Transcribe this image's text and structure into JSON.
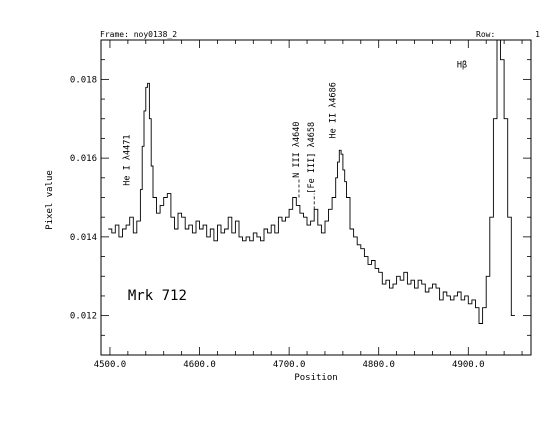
{
  "header": {
    "frame": "Frame: noy0138_2",
    "row_label": "Row:",
    "row_value": "1"
  },
  "chart_data": {
    "type": "line",
    "title": "",
    "xlabel": "Position",
    "ylabel": "Pixel value",
    "xlim": [
      4490,
      4970
    ],
    "ylim": [
      0.011,
      0.019
    ],
    "x_ticks": [
      "4500.0",
      "4600.0",
      "4700.0",
      "4800.0",
      "4900.0"
    ],
    "y_ticks": [
      "0.012",
      "0.014",
      "0.016",
      "0.018"
    ],
    "grid": false,
    "step": true,
    "series": [
      {
        "x": [
          4498,
          4502,
          4506,
          4510,
          4514,
          4518,
          4522,
          4526,
          4530,
          4534,
          4536,
          4538,
          4540,
          4542,
          4544,
          4546,
          4548,
          4552,
          4556,
          4560,
          4564,
          4568,
          4572,
          4576,
          4580,
          4584,
          4588,
          4592,
          4596,
          4600,
          4604,
          4608,
          4612,
          4616,
          4620,
          4624,
          4628,
          4632,
          4636,
          4640,
          4644,
          4648,
          4652,
          4656,
          4660,
          4664,
          4668,
          4672,
          4676,
          4680,
          4684,
          4688,
          4692,
          4696,
          4700,
          4704,
          4708,
          4712,
          4716,
          4720,
          4724,
          4728,
          4732,
          4736,
          4740,
          4744,
          4748,
          4752,
          4754,
          4756,
          4758,
          4760,
          4762,
          4764,
          4768,
          4772,
          4776,
          4780,
          4784,
          4788,
          4792,
          4796,
          4800,
          4804,
          4808,
          4812,
          4816,
          4820,
          4824,
          4828,
          4832,
          4836,
          4840,
          4844,
          4848,
          4852,
          4856,
          4860,
          4864,
          4868,
          4872,
          4876,
          4880,
          4884,
          4888,
          4892,
          4896,
          4900,
          4904,
          4908,
          4912,
          4916,
          4920,
          4924,
          4928,
          4932,
          4936,
          4940,
          4944,
          4948
        ],
        "y": [
          0.0142,
          0.0141,
          0.0143,
          0.014,
          0.0142,
          0.0143,
          0.0145,
          0.0141,
          0.0144,
          0.0152,
          0.0163,
          0.0172,
          0.0178,
          0.0179,
          0.017,
          0.0158,
          0.015,
          0.0146,
          0.0148,
          0.015,
          0.0151,
          0.0145,
          0.0142,
          0.0146,
          0.0145,
          0.0142,
          0.0143,
          0.0141,
          0.0144,
          0.0142,
          0.0143,
          0.014,
          0.0142,
          0.0139,
          0.0143,
          0.0141,
          0.0142,
          0.0145,
          0.0141,
          0.0144,
          0.014,
          0.0139,
          0.014,
          0.0139,
          0.0141,
          0.014,
          0.0139,
          0.0142,
          0.0141,
          0.0143,
          0.0141,
          0.0145,
          0.0144,
          0.0145,
          0.0147,
          0.015,
          0.0148,
          0.0146,
          0.0145,
          0.0143,
          0.0144,
          0.0147,
          0.0143,
          0.0141,
          0.0144,
          0.0147,
          0.015,
          0.0155,
          0.0159,
          0.0162,
          0.0161,
          0.0157,
          0.0154,
          0.015,
          0.0142,
          0.014,
          0.0138,
          0.0137,
          0.0135,
          0.0133,
          0.0134,
          0.0132,
          0.0131,
          0.0128,
          0.0129,
          0.0127,
          0.0128,
          0.013,
          0.0129,
          0.0131,
          0.0128,
          0.0129,
          0.0127,
          0.0129,
          0.0128,
          0.0126,
          0.0127,
          0.0128,
          0.0127,
          0.0124,
          0.0126,
          0.0125,
          0.0124,
          0.0125,
          0.0126,
          0.0124,
          0.0125,
          0.0123,
          0.0124,
          0.0122,
          0.0118,
          0.0122,
          0.013,
          0.0145,
          0.017,
          0.019,
          0.0185,
          0.017,
          0.0145,
          0.012
        ]
      }
    ],
    "annotations": [
      {
        "text": "He I λ4471",
        "x": 4522,
        "y": 0.0153
      },
      {
        "text": "N III λ4640",
        "x": 4711,
        "y": 0.0155
      },
      {
        "text": "[Fe III] λ4658",
        "x": 4728,
        "y": 0.0151
      },
      {
        "text": "He II λ4686",
        "x": 4752,
        "y": 0.0165
      },
      {
        "text": "Hβ",
        "x": 4893,
        "y": 0.0183
      },
      {
        "text": "Mrk 712",
        "x": 4520,
        "y": 0.0124
      }
    ]
  }
}
